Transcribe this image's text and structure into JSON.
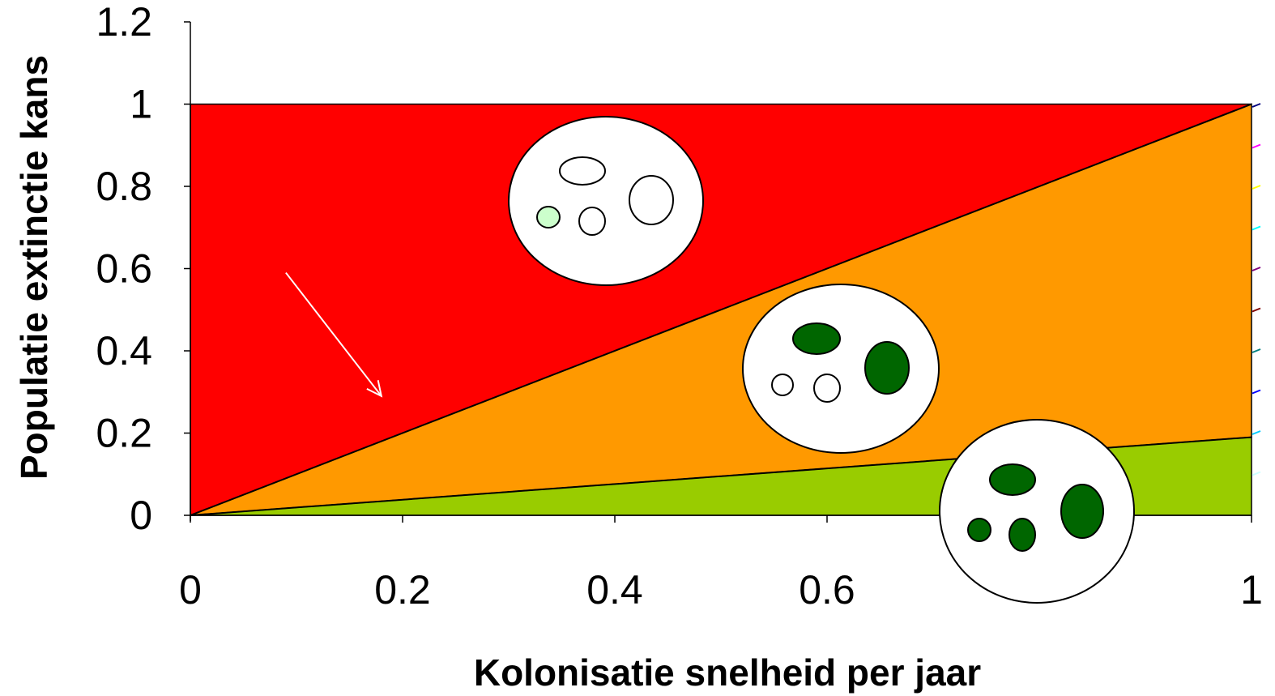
{
  "chart_data": {
    "type": "area",
    "title": "",
    "xlabel": "Kolonisatie snelheid per jaar",
    "ylabel": "Populatie extinctie kans",
    "xlim": [
      0,
      1
    ],
    "ylim": [
      0,
      1.2
    ],
    "x_ticks": [
      "0",
      "0.2",
      "0.4",
      "0.6",
      "",
      "1"
    ],
    "y_ticks": [
      "0",
      "0.2",
      "0.4",
      "0.6",
      "0.8",
      "1",
      "1.2"
    ],
    "grid": false,
    "legend": "none",
    "regions": [
      {
        "color": "#ff0000",
        "lower": [
          [
            0,
            0
          ],
          [
            1,
            1
          ]
        ],
        "upper": [
          [
            0,
            1.0
          ],
          [
            1,
            1.0
          ]
        ]
      },
      {
        "color": "#ff9900",
        "lower": [
          [
            0,
            0
          ],
          [
            1,
            0.19
          ]
        ],
        "upper": [
          [
            0,
            0
          ],
          [
            1,
            1
          ]
        ]
      },
      {
        "color": "#99cc00",
        "lower": [
          [
            0,
            0
          ],
          [
            1,
            0
          ]
        ],
        "upper": [
          [
            0,
            0
          ],
          [
            1,
            0.19
          ]
        ]
      }
    ],
    "boundary_lines": [
      {
        "x": [
          0,
          1
        ],
        "y": [
          0,
          1
        ]
      },
      {
        "x": [
          0,
          1
        ],
        "y": [
          0,
          0.19
        ]
      }
    ],
    "arrow": {
      "from": [
        0.09,
        0.59
      ],
      "to": [
        0.18,
        0.29
      ],
      "color": "#ffffff"
    },
    "right_edge_marks": [
      "#000080",
      "#ff00ff",
      "#ffff00",
      "#00ffff",
      "#800080",
      "#800000",
      "#008080",
      "#0000ff",
      "#00ccff",
      "#ccffff"
    ],
    "landscape_diagrams": [
      {
        "label": "red-region",
        "patches": [
          "#ffffff",
          "#ffffff",
          "#ccffcc",
          "#ffffff"
        ],
        "big": "#ffffff"
      },
      {
        "label": "orange-region",
        "patches": [
          "#006600",
          "#ffffff",
          "#ffffff"
        ],
        "big": "#006600"
      },
      {
        "label": "green-region",
        "patches": [
          "#006600",
          "#006600",
          "#006600"
        ],
        "big": "#006600"
      }
    ]
  }
}
